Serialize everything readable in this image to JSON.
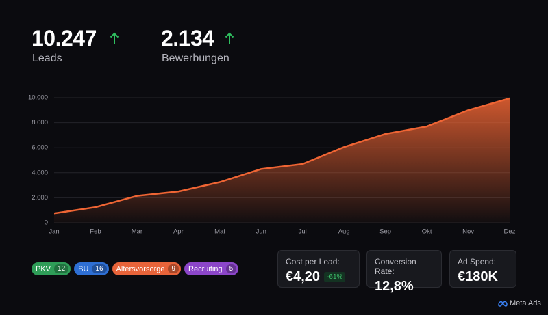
{
  "kpis": [
    {
      "value": "10.247",
      "label": "Leads"
    },
    {
      "value": "2.134",
      "label": "Bewerbungen"
    }
  ],
  "chart_data": {
    "type": "area",
    "categories": [
      "Jan",
      "Feb",
      "Mar",
      "Apr",
      "Mai",
      "Jun",
      "Jul",
      "Aug",
      "Sep",
      "Okt",
      "Nov",
      "Dez"
    ],
    "values": [
      750,
      1250,
      2150,
      2500,
      3250,
      4300,
      4700,
      6050,
      7100,
      7700,
      9000,
      9950
    ],
    "color": "#ef6534",
    "ylim": [
      0,
      10000
    ],
    "yticks": [
      0,
      {
        "value": 2000,
        "label": "2.000"
      },
      {
        "value": 4000,
        "label": "4.000"
      },
      {
        "value": 6000,
        "label": "6.000"
      },
      {
        "value": 8000,
        "label": "8.000"
      },
      {
        "value": 10000,
        "label": "10.000"
      }
    ],
    "grid": true
  },
  "tags": [
    {
      "label": "PKV",
      "count": 12,
      "color": "#2f9d58"
    },
    {
      "label": "BU",
      "count": 16,
      "color": "#2e6fd4"
    },
    {
      "label": "Altersvorsorge",
      "count": 9,
      "color": "#e8643a"
    },
    {
      "label": "Recruiting",
      "count": 5,
      "color": "#8c46c9"
    }
  ],
  "metrics": [
    {
      "label": "Cost per Lead:",
      "value": "€4,20",
      "change": "-61%"
    },
    {
      "label": "Conversion Rate:",
      "value": "12,8%"
    },
    {
      "label": "Ad Spend:",
      "value": "€180K"
    }
  ],
  "brand": "Meta Ads"
}
